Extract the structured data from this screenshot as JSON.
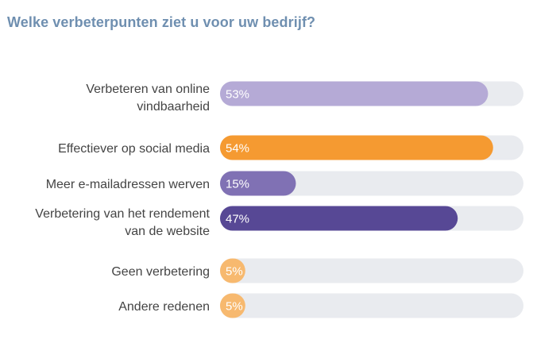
{
  "chart_data": {
    "type": "bar",
    "orientation": "horizontal",
    "title": "Welke verbeterpunten ziet u voor uw bedrijf?",
    "categories": [
      [
        "Verbeteren van online",
        "vindbaarheid"
      ],
      [
        "Effectiever op social media"
      ],
      [
        "Meer e-mailadressen werven"
      ],
      [
        "Verbetering van het rendement",
        "van de website"
      ],
      [
        "Geen verbetering"
      ],
      [
        "Andere redenen"
      ]
    ],
    "values": [
      53,
      54,
      15,
      47,
      5,
      5
    ],
    "value_labels": [
      "53%",
      "54%",
      "15%",
      "47%",
      "5%",
      "5%"
    ],
    "xlim": [
      0,
      60
    ],
    "grid": false,
    "legend": "none",
    "colors": {
      "track": "#e9ebef",
      "bars": [
        "#b5aad6",
        "#f59a31",
        "#8071b4",
        "#574895",
        "#f7b96f",
        "#f7b96f"
      ],
      "title": "#6f8fb0",
      "label": "#444444"
    }
  }
}
